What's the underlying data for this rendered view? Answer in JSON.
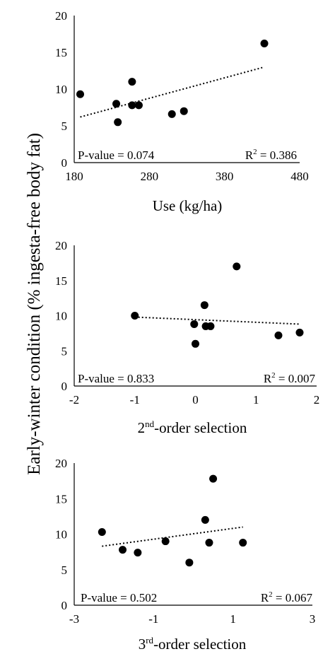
{
  "ylabel": "Early-winter condition (% ingesta-free body fat)",
  "chart_data": [
    {
      "type": "scatter",
      "xlabel": "Use (kg/ha)",
      "xlabel_super": "",
      "xlabel_rest": "",
      "xlim": [
        180,
        480
      ],
      "ylim": [
        0,
        20
      ],
      "xticks": [
        180,
        280,
        380,
        480
      ],
      "yticks": [
        0,
        5,
        10,
        15,
        20
      ],
      "xtick_labels": [
        "180",
        "280",
        "380",
        "480"
      ],
      "ytick_labels": [
        "0",
        "5",
        "10",
        "15",
        "20"
      ],
      "points": [
        {
          "x": 188,
          "y": 9.3
        },
        {
          "x": 236,
          "y": 8.0
        },
        {
          "x": 238,
          "y": 5.5
        },
        {
          "x": 257,
          "y": 11.0
        },
        {
          "x": 257,
          "y": 7.8
        },
        {
          "x": 266,
          "y": 7.8
        },
        {
          "x": 310,
          "y": 6.6
        },
        {
          "x": 326,
          "y": 7.0
        },
        {
          "x": 433,
          "y": 16.2
        }
      ],
      "trendline": {
        "x": [
          188,
          433
        ],
        "y": [
          6.2,
          13.0
        ],
        "style": "dotted"
      },
      "pvalue": "P-value = 0.074",
      "r2_prefix": "R",
      "r2_sup": "2",
      "r2_value": " = 0.386",
      "grid": false
    },
    {
      "type": "scatter",
      "xlabel": "",
      "xlabel_super": "nd",
      "xlabel_pre": "2",
      "xlabel_rest": "-order selection",
      "xlim": [
        -2,
        2
      ],
      "ylim": [
        0,
        20
      ],
      "xticks": [
        -2,
        -1,
        0,
        1,
        2
      ],
      "yticks": [
        0,
        5,
        10,
        15,
        20
      ],
      "xtick_labels": [
        "-2",
        "-1",
        "0",
        "1",
        "2"
      ],
      "ytick_labels": [
        "0",
        "5",
        "10",
        "15",
        "20"
      ],
      "points": [
        {
          "x": -1.0,
          "y": 10.0
        },
        {
          "x": -0.02,
          "y": 8.8
        },
        {
          "x": 0.0,
          "y": 6.0
        },
        {
          "x": 0.15,
          "y": 11.5
        },
        {
          "x": 0.17,
          "y": 8.5
        },
        {
          "x": 0.25,
          "y": 8.5
        },
        {
          "x": 0.68,
          "y": 17.0
        },
        {
          "x": 1.37,
          "y": 7.2
        },
        {
          "x": 1.72,
          "y": 7.6
        }
      ],
      "trendline": {
        "x": [
          -1.0,
          1.72
        ],
        "y": [
          9.8,
          8.8
        ],
        "style": "dotted"
      },
      "pvalue": "P-value = 0.833",
      "r2_prefix": "R",
      "r2_sup": "2",
      "r2_value": " = 0.007",
      "grid": false
    },
    {
      "type": "scatter",
      "xlabel": "",
      "xlabel_super": "rd",
      "xlabel_pre": "3",
      "xlabel_rest": "-order selection",
      "xlim": [
        -3,
        3
      ],
      "ylim": [
        0,
        20
      ],
      "xticks": [
        -3,
        -1,
        1,
        3
      ],
      "yticks": [
        0,
        5,
        10,
        15,
        20
      ],
      "xtick_labels": [
        "-3",
        "-1",
        "1",
        "3"
      ],
      "ytick_labels": [
        "0",
        "5",
        "10",
        "15",
        "20"
      ],
      "points": [
        {
          "x": -2.3,
          "y": 10.3
        },
        {
          "x": -1.78,
          "y": 7.8
        },
        {
          "x": -1.4,
          "y": 7.4
        },
        {
          "x": -0.7,
          "y": 9.0
        },
        {
          "x": -0.1,
          "y": 6.0
        },
        {
          "x": 0.3,
          "y": 12.0
        },
        {
          "x": 0.4,
          "y": 8.8
        },
        {
          "x": 0.5,
          "y": 17.8
        },
        {
          "x": 1.25,
          "y": 8.8
        }
      ],
      "trendline": {
        "x": [
          -2.3,
          1.25
        ],
        "y": [
          8.3,
          11.0
        ],
        "style": "dotted"
      },
      "pvalue": "P-value = 0.502",
      "r2_prefix": "R",
      "r2_sup": "2",
      "r2_value": " = 0.067",
      "grid": false
    }
  ]
}
